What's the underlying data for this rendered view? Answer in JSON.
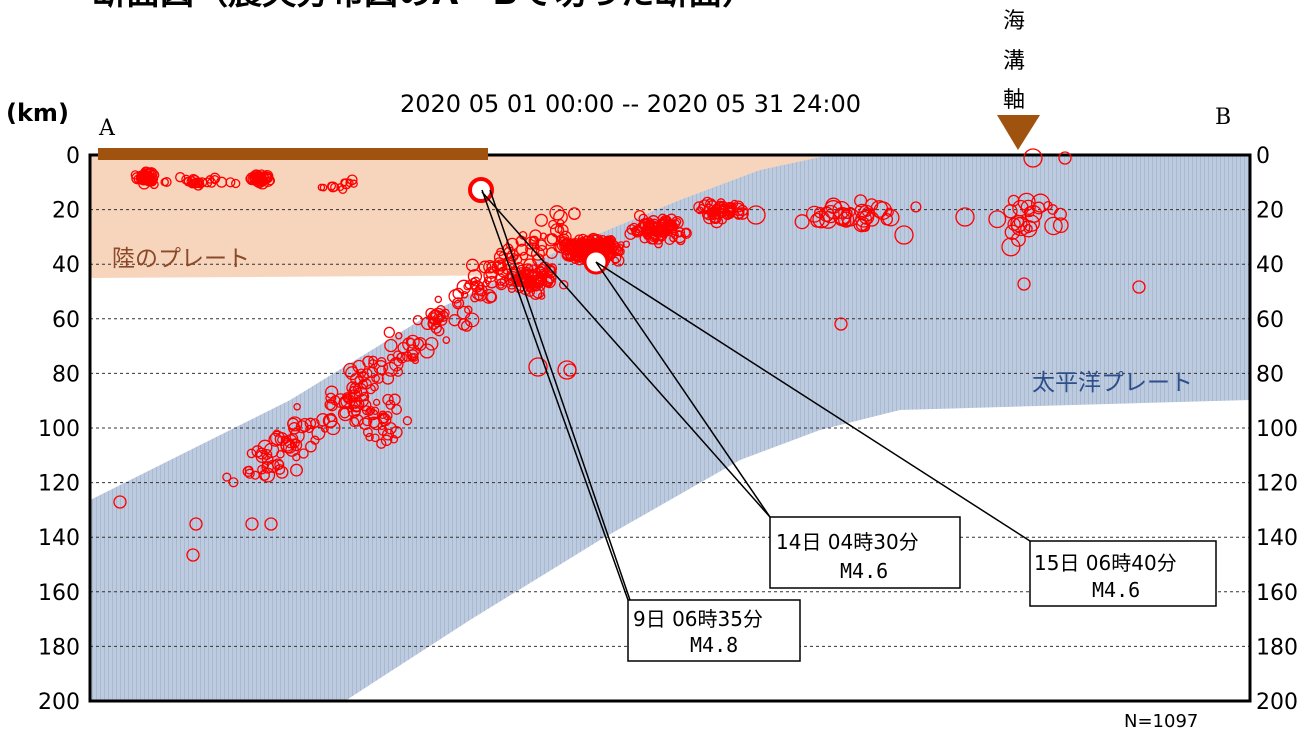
{
  "page": {
    "title": "断面図（震央分布図のA－Bで切った断面）",
    "period": "2020 05 01 00:00 -- 2020 05 31 24:00",
    "unit": "(km)",
    "end_a": "A",
    "end_b": "B",
    "trench_label": [
      "海",
      "溝",
      "軸"
    ],
    "count": "N=1097"
  },
  "chart_data": {
    "type": "scatter",
    "title": "断面図（震央分布図のA－Bで切った断面）",
    "subtitle": "2020 05 01 00:00 -- 2020 05 31 24:00",
    "ylabel": "(km)",
    "ylim": [
      200,
      0
    ],
    "yticks_left": [
      "0",
      "20",
      "40",
      "60",
      "80",
      "100",
      "120",
      "140",
      "160",
      "180",
      "200"
    ],
    "yticks_right": [
      "0",
      "20",
      "40",
      "60",
      "80",
      "100",
      "120",
      "140",
      "160",
      "180",
      "200"
    ],
    "grid": true,
    "plates": [
      {
        "name": "陸のプレート",
        "color": "#f6d3bb"
      },
      {
        "name": "太平洋プレート",
        "color": "#b8c6dd"
      }
    ],
    "land_plate_label": "陸のプレート",
    "pacific_plate_label": "太平洋プレート",
    "marker_color": "#ff0000",
    "land_bar_color": "#a0520f",
    "trench_color": "#a0520f",
    "n_events": 1097,
    "callouts": [
      {
        "date": "9日 06時35分",
        "mag": "M4.8",
        "depth": 12
      },
      {
        "date": "14日 04時30分",
        "mag": "M4.6",
        "depth": 38
      },
      {
        "date": "15日 06時40分",
        "mag": "M4.6",
        "depth": 38
      }
    ]
  }
}
